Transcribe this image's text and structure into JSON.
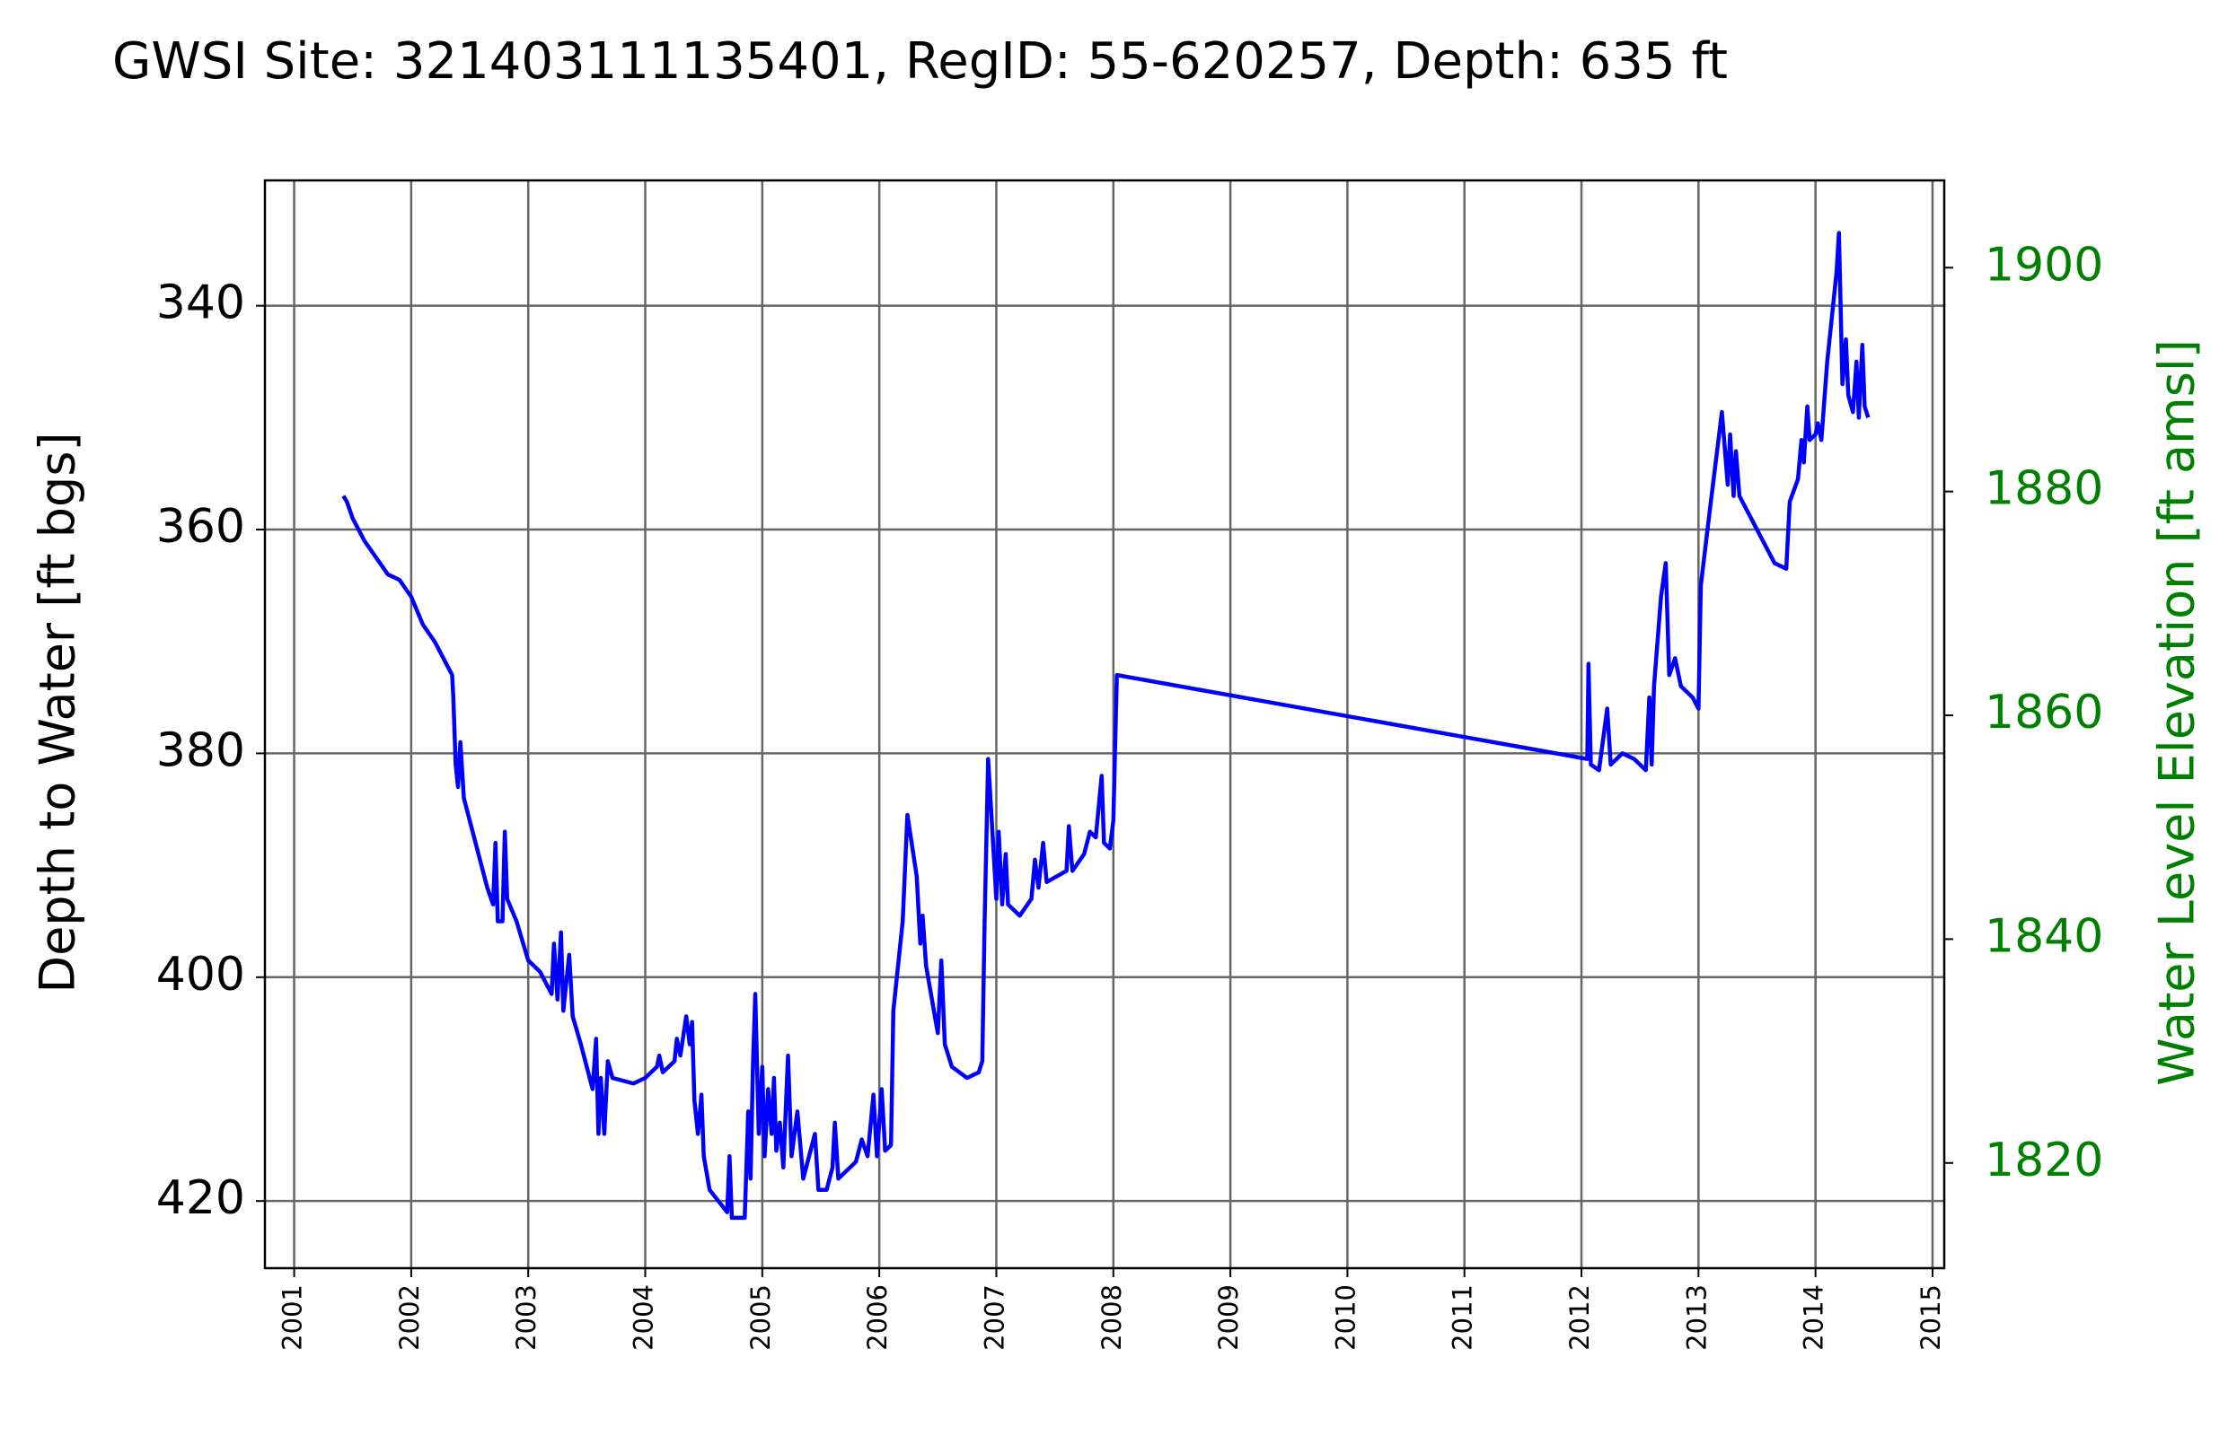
{
  "chart_data": {
    "type": "line",
    "title": "GWSI Site: 321403111135401, RegID: 55-620257, Depth: 635 ft",
    "ylabel": "Depth to Water [ft bgs]",
    "y2label": "Water Level Elevation [ft amsl]",
    "color": "#0000ff",
    "y2_color": "#008000",
    "grid": true,
    "xlim": [
      2000.75,
      2015.1
    ],
    "xticks": [
      2001,
      2002,
      2003,
      2004,
      2005,
      2006,
      2007,
      2008,
      2009,
      2010,
      2011,
      2012,
      2013,
      2014,
      2015
    ],
    "ylim": [
      426,
      328.8
    ],
    "yticks": [
      340,
      360,
      380,
      400,
      420
    ],
    "y2lim": [
      1810.6,
      1907.8
    ],
    "y2ticks": [
      1820,
      1840,
      1860,
      1880,
      1900
    ],
    "x": [
      2001.42,
      2001.45,
      2001.5,
      2001.6,
      2001.8,
      2001.9,
      2002.0,
      2002.1,
      2002.2,
      2002.3,
      2002.35,
      2002.36,
      2002.38,
      2002.4,
      2002.42,
      2002.45,
      2002.55,
      2002.65,
      2002.7,
      2002.72,
      2002.74,
      2002.78,
      2002.8,
      2002.82,
      2002.9,
      2003.0,
      2003.1,
      2003.2,
      2003.22,
      2003.25,
      2003.28,
      2003.3,
      2003.35,
      2003.38,
      2003.45,
      2003.55,
      2003.58,
      2003.6,
      2003.62,
      2003.65,
      2003.68,
      2003.72,
      2003.9,
      2004.0,
      2004.1,
      2004.12,
      2004.15,
      2004.25,
      2004.27,
      2004.3,
      2004.35,
      2004.38,
      2004.4,
      2004.42,
      2004.45,
      2004.48,
      2004.5,
      2004.55,
      2004.7,
      2004.72,
      2004.74,
      2004.85,
      2004.88,
      2004.9,
      2004.92,
      2004.94,
      2004.97,
      2005.0,
      2005.02,
      2005.05,
      2005.08,
      2005.1,
      2005.12,
      2005.15,
      2005.18,
      2005.22,
      2005.25,
      2005.3,
      2005.35,
      2005.45,
      2005.48,
      2005.55,
      2005.6,
      2005.62,
      2005.65,
      2005.8,
      2005.85,
      2005.9,
      2005.95,
      2005.98,
      2006.02,
      2006.05,
      2006.1,
      2006.12,
      2006.2,
      2006.24,
      2006.32,
      2006.35,
      2006.37,
      2006.4,
      2006.5,
      2006.53,
      2006.56,
      2006.62,
      2006.75,
      2006.85,
      2006.88,
      2006.9,
      2006.93,
      2007.0,
      2007.02,
      2007.05,
      2007.08,
      2007.1,
      2007.2,
      2007.3,
      2007.33,
      2007.36,
      2007.4,
      2007.43,
      2007.6,
      2007.62,
      2007.65,
      2007.75,
      2007.8,
      2007.85,
      2007.9,
      2007.92,
      2007.97,
      2008.0,
      2008.03,
      2012.05,
      2012.06,
      2012.08,
      2012.15,
      2012.22,
      2012.25,
      2012.35,
      2012.45,
      2012.55,
      2012.58,
      2012.6,
      2012.62,
      2012.68,
      2012.72,
      2012.75,
      2012.8,
      2012.85,
      2012.95,
      2013.0,
      2013.02,
      2013.1,
      2013.2,
      2013.25,
      2013.27,
      2013.3,
      2013.32,
      2013.35,
      2013.5,
      2013.65,
      2013.75,
      2013.78,
      2013.85,
      2013.88,
      2013.9,
      2013.93,
      2013.95,
      2014.0,
      2014.02,
      2014.05,
      2014.1,
      2014.18,
      2014.2,
      2014.23,
      2014.26,
      2014.28,
      2014.32,
      2014.35,
      2014.37,
      2014.4,
      2014.42,
      2014.45
    ],
    "values": [
      357,
      357.5,
      359,
      361,
      364,
      364.5,
      366,
      368.5,
      370,
      372,
      373,
      375,
      381,
      383,
      379,
      384,
      388,
      392,
      393.5,
      388,
      395,
      395,
      387,
      393,
      395,
      398.5,
      399.5,
      401.5,
      397,
      402,
      396,
      403,
      398,
      403.5,
      406,
      410,
      405.5,
      414,
      409,
      414,
      407.5,
      409,
      409.5,
      409,
      408,
      407,
      408.5,
      407.5,
      405.5,
      407,
      403.5,
      406,
      404,
      411,
      414,
      410.5,
      416,
      419,
      421,
      416,
      421.5,
      421.5,
      412,
      418,
      408,
      401.5,
      414,
      408,
      416,
      410,
      414,
      409,
      415.5,
      413,
      417,
      407,
      416,
      412,
      418,
      414,
      419,
      419,
      417,
      413,
      418,
      416.5,
      414.5,
      416,
      410.5,
      416,
      410,
      415.5,
      415,
      403,
      395,
      385.5,
      391,
      397,
      394.5,
      399,
      405,
      398.5,
      406,
      408,
      409,
      408.5,
      407.5,
      395,
      380.5,
      393,
      387,
      393.5,
      389,
      393.5,
      394.5,
      393,
      389.5,
      392,
      388,
      391.5,
      390.5,
      386.5,
      390.5,
      389,
      387,
      387.5,
      382,
      388,
      388.5,
      386,
      373,
      380.5,
      372,
      381,
      381.5,
      376,
      381,
      380,
      380.5,
      381.5,
      375,
      381,
      374,
      366,
      363,
      373,
      371.5,
      374,
      375,
      376,
      365,
      358,
      349.5,
      356,
      351.5,
      357,
      353,
      357,
      360,
      363,
      363.5,
      357.5,
      355.5,
      352,
      354,
      349,
      352,
      351.5,
      350.5,
      352,
      345,
      337,
      333.5,
      347,
      343,
      348,
      349.5,
      345,
      350,
      343.5,
      349,
      350
    ]
  }
}
